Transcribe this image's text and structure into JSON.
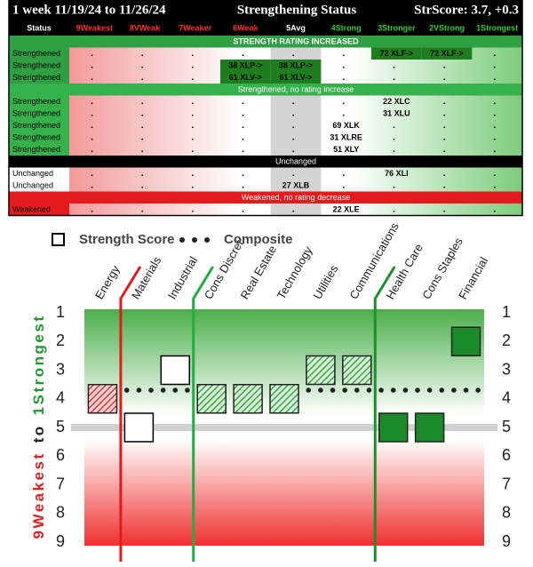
{
  "table": {
    "header": {
      "period": "1 week 11/19/24 to 11/26/24",
      "title": "Strengthening Status",
      "score": "StrScore: 3.7, +0.3"
    },
    "columns": [
      {
        "text": "Status",
        "color": "#ffffff"
      },
      {
        "text": "9Weakest",
        "color": "#ff3030"
      },
      {
        "text": "8VWeak",
        "color": "#ff3030"
      },
      {
        "text": "7Weaker",
        "color": "#ff3030"
      },
      {
        "text": "6Weak",
        "color": "#ff3030"
      },
      {
        "text": "5Avg",
        "color": "#ffffff"
      },
      {
        "text": "4Strong",
        "color": "#33cc33"
      },
      {
        "text": "3Stronger",
        "color": "#33cc33"
      },
      {
        "text": "2VStrong",
        "color": "#33cc33"
      },
      {
        "text": "1Strongest",
        "color": "#33cc33"
      }
    ],
    "sections": [
      {
        "title": "STRENGTH RATING INCREASED",
        "color": "#2ea043",
        "rows": [
          {
            "status": "Strengthened",
            "cells": [
              null,
              null,
              null,
              null,
              null,
              null,
              "72 XLF->",
              "72 XLF->",
              null
            ]
          },
          {
            "status": "Strengthened",
            "cells": [
              null,
              null,
              null,
              "38 XLP->",
              "38 XLP->",
              null,
              null,
              null,
              null
            ]
          },
          {
            "status": "Strengthened",
            "cells": [
              null,
              null,
              null,
              "61 XLV->",
              "61 XLV->",
              null,
              null,
              null,
              null
            ]
          }
        ]
      },
      {
        "title": "Strengthened, no rating increase",
        "color": "#36b24c",
        "rows": [
          {
            "status": "Strengthened",
            "cells": [
              null,
              null,
              null,
              null,
              null,
              null,
              "22 XLC",
              null,
              null
            ]
          },
          {
            "status": "Strengthened",
            "cells": [
              null,
              null,
              null,
              null,
              null,
              null,
              "31 XLU",
              null,
              null
            ]
          },
          {
            "status": "Strengthened",
            "cells": [
              null,
              null,
              null,
              null,
              null,
              "69 XLK",
              null,
              null,
              null
            ]
          },
          {
            "status": "Strengthened",
            "cells": [
              null,
              null,
              null,
              null,
              null,
              "31 XLRE",
              null,
              null,
              null
            ]
          },
          {
            "status": "Strengthened",
            "cells": [
              null,
              null,
              null,
              null,
              null,
              "51 XLY",
              null,
              null,
              null
            ]
          }
        ]
      },
      {
        "title": "Unchanged",
        "color": "#000000",
        "rows": [
          {
            "status": "Unchanged",
            "cells": [
              null,
              null,
              null,
              null,
              null,
              null,
              "76 XLI",
              null,
              null
            ]
          },
          {
            "status": "Unchanged",
            "cells": [
              null,
              null,
              null,
              null,
              "27 XLB",
              null,
              null,
              null,
              null
            ]
          }
        ]
      },
      {
        "title": "Weakened, no rating decrease",
        "color": "#e41a1c",
        "rows": [
          {
            "status": "Weakened",
            "cells": [
              null,
              null,
              null,
              null,
              null,
              "22 XLE",
              null,
              null,
              null
            ]
          }
        ]
      }
    ]
  },
  "chart_data": {
    "type": "dot",
    "categories": [
      "Energy",
      "Materials",
      "Industrial",
      "Cons Discret",
      "Real Estate",
      "Technology",
      "Utilities",
      "Communications",
      "Health Care",
      "Cons Staples",
      "Financial"
    ],
    "series": [
      {
        "name": "Strength Score",
        "values": [
          4,
          5,
          3,
          4,
          4,
          4,
          3,
          3,
          5,
          5,
          2
        ],
        "colors": [
          "#e02020",
          "#ffffff",
          "#ffffff",
          "#1f9a2e",
          "#1f9a2e",
          "#1f9a2e",
          "#1f9a2e",
          "#1f9a2e",
          "#1a8a28",
          "#1a8a28",
          "#1a8a28"
        ],
        "hatched": [
          true,
          false,
          false,
          true,
          true,
          true,
          true,
          true,
          false,
          false,
          false
        ]
      },
      {
        "name": "Composite",
        "values": [
          3.7,
          3.7,
          3.7,
          3.7,
          3.7,
          3.7,
          3.7,
          3.7,
          3.7,
          3.7,
          3.7
        ],
        "color": "#222222"
      }
    ],
    "ylabel_parts": [
      {
        "text": "9Weakest",
        "color": "#e02020"
      },
      {
        "text": "to",
        "color": "#222222"
      },
      {
        "text": "1Strongest",
        "color": "#1f9a2e"
      }
    ],
    "ylim": [
      1,
      9
    ],
    "invert_y": true,
    "yticks": [
      1,
      2,
      3,
      4,
      5,
      6,
      7,
      8,
      9
    ],
    "reference_line": 5,
    "dividers": [
      {
        "after": 0,
        "color": "#e31a1c"
      },
      {
        "after": 2,
        "color": "#1fae3f"
      },
      {
        "after": 7,
        "color": "#1a8f2a"
      }
    ]
  }
}
